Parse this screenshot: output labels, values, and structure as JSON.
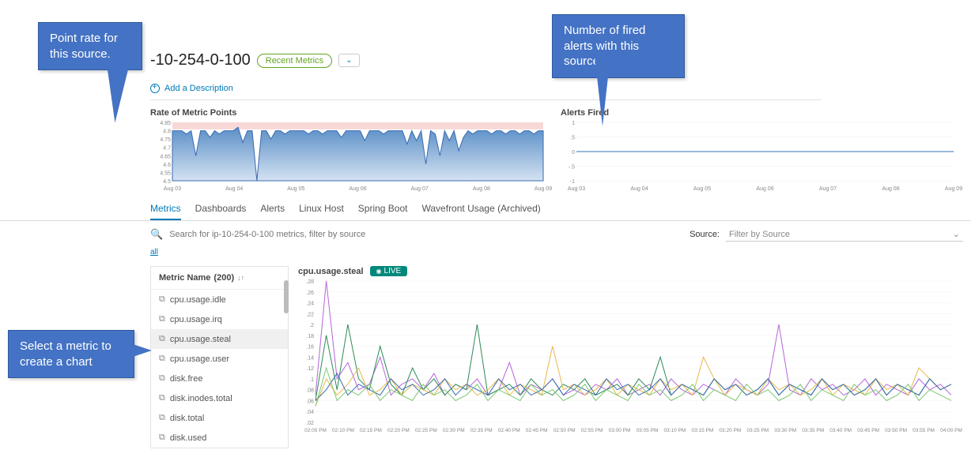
{
  "header": {
    "title": "-10-254-0-100",
    "recent_badge": "Recent Metrics",
    "add_description": "Add a Description"
  },
  "callouts": {
    "c1": "Point rate for this source.",
    "c2": "Number of fired alerts with this source.",
    "c3": "Select a metric to create a chart"
  },
  "chart_rate": {
    "title": "Rate of Metric Points",
    "ylabels": [
      "4.85",
      "4.8",
      "4.75",
      "4.7",
      "4.65",
      "4.6",
      "4.55",
      "4.5"
    ],
    "xlabels": [
      "Aug 03",
      "Aug 04",
      "Aug 05",
      "Aug 06",
      "Aug 07",
      "Aug 08",
      "Aug 09"
    ],
    "ylim": [
      4.5,
      4.85
    ],
    "band_color_top": "#f8d7d7",
    "band_color_bottom": "#f8d7d7",
    "area_gradient_top": "#5b8fc7",
    "area_gradient_bottom": "#d4e2f2",
    "line_color": "#3a6bb0",
    "values": [
      4.8,
      4.8,
      4.8,
      4.78,
      4.8,
      4.65,
      4.8,
      4.8,
      4.76,
      4.8,
      4.78,
      4.8,
      4.8,
      4.8,
      4.82,
      4.73,
      4.8,
      4.8,
      4.5,
      4.8,
      4.8,
      4.75,
      4.8,
      4.8,
      4.78,
      4.8,
      4.8,
      4.8,
      4.8,
      4.78,
      4.8,
      4.8,
      4.78,
      4.8,
      4.8,
      4.8,
      4.76,
      4.8,
      4.8,
      4.8,
      4.8,
      4.74,
      4.8,
      4.8,
      4.8,
      4.78,
      4.8,
      4.8,
      4.8,
      4.8,
      4.72,
      4.8,
      4.74,
      4.8,
      4.6,
      4.8,
      4.78,
      4.65,
      4.8,
      4.74,
      4.8,
      4.68,
      4.76,
      4.8,
      4.78,
      4.8,
      4.8,
      4.8,
      4.78,
      4.8,
      4.8,
      4.78,
      4.8,
      4.8,
      4.78,
      4.8,
      4.8,
      4.78,
      4.8,
      4.8
    ]
  },
  "chart_alerts": {
    "title": "Alerts Fired",
    "ylabels": [
      "1",
      ".5",
      "0",
      "-.5",
      "-1"
    ],
    "xlabels": [
      "Aug 03",
      "Aug 04",
      "Aug 05",
      "Aug 06",
      "Aug 07",
      "Aug 08",
      "Aug 09"
    ],
    "line_color": "#5b8fc7",
    "value": 0
  },
  "tabs": [
    "Metrics",
    "Dashboards",
    "Alerts",
    "Linux Host",
    "Spring Boot",
    "Wavefront Usage (Archived)"
  ],
  "active_tab": 0,
  "search": {
    "placeholder": "Search for ip-10-254-0-100 metrics, filter by source"
  },
  "source_label": "Source:",
  "source_placeholder": "Filter by Source",
  "all_link": "all",
  "metrics_header": {
    "label": "Metric Name",
    "count": "(200)"
  },
  "metrics": [
    {
      "name": "cpu.usage.idle",
      "selected": false
    },
    {
      "name": "cpu.usage.irq",
      "selected": false
    },
    {
      "name": "cpu.usage.steal",
      "selected": true
    },
    {
      "name": "cpu.usage.user",
      "selected": false
    },
    {
      "name": "disk.free",
      "selected": false
    },
    {
      "name": "disk.inodes.total",
      "selected": false
    },
    {
      "name": "disk.total",
      "selected": false
    },
    {
      "name": "disk.used",
      "selected": false
    }
  ],
  "big_chart": {
    "title": "cpu.usage.steal",
    "live_label": "LIVE",
    "ylabels": [
      ".28",
      ".26",
      ".24",
      ".22",
      ".2",
      ".18",
      ".16",
      ".14",
      ".12",
      ".1",
      ".08",
      ".06",
      ".04",
      ".02"
    ],
    "ymin": 0.02,
    "ymax": 0.28,
    "xlabels": [
      "02:05 PM",
      "02:10 PM",
      "02:15 PM",
      "02:20 PM",
      "02:25 PM",
      "02:30 PM",
      "02:35 PM",
      "02:40 PM",
      "02:45 PM",
      "02:50 PM",
      "02:55 PM",
      "03:00 PM",
      "03:05 PM",
      "03:10 PM",
      "03:15 PM",
      "03:20 PM",
      "03:25 PM",
      "03:30 PM",
      "03:35 PM",
      "03:40 PM",
      "03:45 PM",
      "03:50 PM",
      "03:55 PM",
      "04:00 PM"
    ],
    "series": [
      {
        "color": "#b565d8",
        "values": [
          0.07,
          0.28,
          0.1,
          0.13,
          0.08,
          0.09,
          0.14,
          0.07,
          0.09,
          0.1,
          0.08,
          0.11,
          0.07,
          0.09,
          0.08,
          0.1,
          0.07,
          0.08,
          0.13,
          0.07,
          0.09,
          0.08,
          0.1,
          0.07,
          0.08,
          0.07,
          0.09,
          0.08,
          0.1,
          0.07,
          0.08,
          0.09,
          0.07,
          0.1,
          0.08,
          0.07,
          0.09,
          0.08,
          0.07,
          0.1,
          0.08,
          0.07,
          0.09,
          0.2,
          0.08,
          0.07,
          0.1,
          0.08,
          0.09,
          0.07,
          0.08,
          0.1,
          0.07,
          0.09,
          0.08,
          0.07,
          0.1,
          0.08,
          0.09,
          0.07
        ]
      },
      {
        "color": "#2b8a56",
        "values": [
          0.06,
          0.18,
          0.08,
          0.2,
          0.1,
          0.08,
          0.16,
          0.09,
          0.07,
          0.12,
          0.08,
          0.1,
          0.07,
          0.09,
          0.08,
          0.2,
          0.07,
          0.08,
          0.09,
          0.07,
          0.1,
          0.08,
          0.07,
          0.09,
          0.08,
          0.1,
          0.07,
          0.08,
          0.09,
          0.07,
          0.1,
          0.08,
          0.14,
          0.07,
          0.09,
          0.08,
          0.07,
          0.1,
          0.08,
          0.09,
          0.07,
          0.08,
          0.1,
          0.07,
          0.09,
          0.08,
          0.07,
          0.1,
          0.08,
          0.09,
          0.07,
          0.08,
          0.1,
          0.07,
          0.09,
          0.08,
          0.07,
          0.1,
          0.08,
          0.09
        ]
      },
      {
        "color": "#e6b94a",
        "values": [
          0.05,
          0.1,
          0.07,
          0.09,
          0.12,
          0.07,
          0.08,
          0.1,
          0.07,
          0.09,
          0.08,
          0.07,
          0.1,
          0.08,
          0.09,
          0.07,
          0.08,
          0.1,
          0.07,
          0.09,
          0.08,
          0.07,
          0.16,
          0.08,
          0.09,
          0.07,
          0.08,
          0.1,
          0.07,
          0.09,
          0.08,
          0.07,
          0.1,
          0.08,
          0.09,
          0.07,
          0.14,
          0.1,
          0.07,
          0.09,
          0.08,
          0.07,
          0.1,
          0.08,
          0.09,
          0.07,
          0.08,
          0.1,
          0.07,
          0.09,
          0.08,
          0.07,
          0.1,
          0.08,
          0.09,
          0.07,
          0.12,
          0.1,
          0.08,
          0.09
        ]
      },
      {
        "color": "#3a6bb0",
        "values": [
          0.06,
          0.08,
          0.11,
          0.07,
          0.09,
          0.08,
          0.07,
          0.1,
          0.08,
          0.09,
          0.07,
          0.08,
          0.1,
          0.07,
          0.09,
          0.08,
          0.07,
          0.1,
          0.08,
          0.09,
          0.07,
          0.08,
          0.1,
          0.07,
          0.09,
          0.08,
          0.07,
          0.1,
          0.08,
          0.09,
          0.07,
          0.08,
          0.1,
          0.07,
          0.09,
          0.08,
          0.07,
          0.1,
          0.08,
          0.09,
          0.07,
          0.08,
          0.1,
          0.07,
          0.09,
          0.08,
          0.07,
          0.1,
          0.08,
          0.09,
          0.07,
          0.08,
          0.1,
          0.07,
          0.09,
          0.08,
          0.07,
          0.1,
          0.08,
          0.09
        ]
      },
      {
        "color": "#7bc96f",
        "values": [
          0.05,
          0.12,
          0.06,
          0.08,
          0.07,
          0.09,
          0.06,
          0.08,
          0.07,
          0.06,
          0.09,
          0.07,
          0.08,
          0.06,
          0.07,
          0.09,
          0.06,
          0.08,
          0.07,
          0.06,
          0.09,
          0.07,
          0.08,
          0.06,
          0.07,
          0.09,
          0.06,
          0.08,
          0.07,
          0.06,
          0.09,
          0.07,
          0.08,
          0.06,
          0.07,
          0.09,
          0.06,
          0.08,
          0.07,
          0.06,
          0.09,
          0.07,
          0.08,
          0.06,
          0.07,
          0.09,
          0.06,
          0.08,
          0.07,
          0.06,
          0.09,
          0.07,
          0.08,
          0.06,
          0.07,
          0.09,
          0.06,
          0.08,
          0.07,
          0.06
        ]
      }
    ]
  }
}
